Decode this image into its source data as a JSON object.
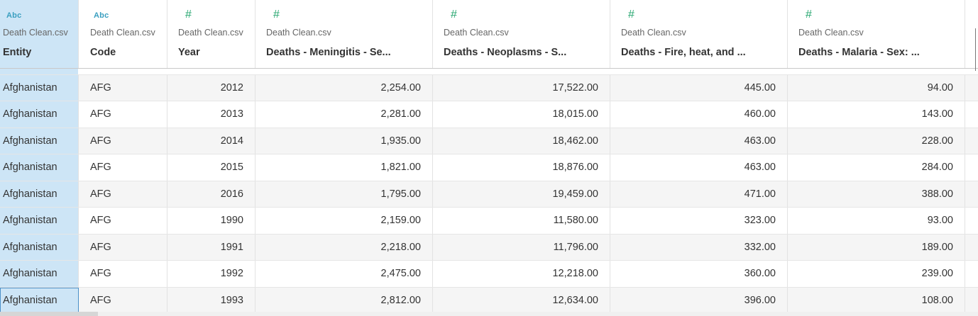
{
  "columns": [
    {
      "type_icon": "Abc",
      "type": "string",
      "source": "Death Clean.csv",
      "name": "Entity"
    },
    {
      "type_icon": "Abc",
      "type": "string",
      "source": "Death Clean.csv",
      "name": "Code"
    },
    {
      "type_icon": "#",
      "type": "number",
      "source": "Death Clean.csv",
      "name": "Year"
    },
    {
      "type_icon": "#",
      "type": "number",
      "source": "Death Clean.csv",
      "name": "Deaths - Meningitis - Se..."
    },
    {
      "type_icon": "#",
      "type": "number",
      "source": "Death Clean.csv",
      "name": "Deaths - Neoplasms - S..."
    },
    {
      "type_icon": "#",
      "type": "number",
      "source": "Death Clean.csv",
      "name": "Deaths - Fire, heat, and ..."
    },
    {
      "type_icon": "#",
      "type": "number",
      "source": "Death Clean.csv",
      "name": "Deaths - Malaria - Sex: ..."
    }
  ],
  "rows": [
    [
      "Afghanistan",
      "AFG",
      "2012",
      "2,254.00",
      "17,522.00",
      "445.00",
      "94.00"
    ],
    [
      "Afghanistan",
      "AFG",
      "2013",
      "2,281.00",
      "18,015.00",
      "460.00",
      "143.00"
    ],
    [
      "Afghanistan",
      "AFG",
      "2014",
      "1,935.00",
      "18,462.00",
      "463.00",
      "228.00"
    ],
    [
      "Afghanistan",
      "AFG",
      "2015",
      "1,821.00",
      "18,876.00",
      "463.00",
      "284.00"
    ],
    [
      "Afghanistan",
      "AFG",
      "2016",
      "1,795.00",
      "19,459.00",
      "471.00",
      "388.00"
    ],
    [
      "Afghanistan",
      "AFG",
      "1990",
      "2,159.00",
      "11,580.00",
      "323.00",
      "93.00"
    ],
    [
      "Afghanistan",
      "AFG",
      "1991",
      "2,218.00",
      "11,796.00",
      "332.00",
      "189.00"
    ],
    [
      "Afghanistan",
      "AFG",
      "1992",
      "2,475.00",
      "12,218.00",
      "360.00",
      "239.00"
    ],
    [
      "Afghanistan",
      "AFG",
      "1993",
      "2,812.00",
      "12,634.00",
      "396.00",
      "108.00"
    ]
  ],
  "selected_column_index": 0,
  "colors": {
    "selected": "#cde5f6",
    "string_icon": "#3a9fc0",
    "number_icon": "#2aa872",
    "row_alt": "#f5f5f5"
  }
}
